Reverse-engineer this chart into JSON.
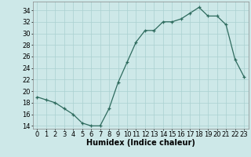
{
  "x": [
    0,
    1,
    2,
    3,
    4,
    5,
    6,
    7,
    8,
    9,
    10,
    11,
    12,
    13,
    14,
    15,
    16,
    17,
    18,
    19,
    20,
    21,
    22,
    23
  ],
  "y": [
    19,
    18.5,
    18,
    17,
    16,
    14.5,
    14,
    14,
    17,
    21.5,
    25,
    28.5,
    30.5,
    30.5,
    32,
    32,
    32.5,
    33.5,
    34.5,
    33,
    33,
    31.5,
    25.5,
    22.5
  ],
  "xlabel": "Humidex (Indice chaleur)",
  "ylim": [
    13.5,
    35.5
  ],
  "xlim": [
    -0.5,
    23.5
  ],
  "yticks": [
    14,
    16,
    18,
    20,
    22,
    24,
    26,
    28,
    30,
    32,
    34
  ],
  "xticks": [
    0,
    1,
    2,
    3,
    4,
    5,
    6,
    7,
    8,
    9,
    10,
    11,
    12,
    13,
    14,
    15,
    16,
    17,
    18,
    19,
    20,
    21,
    22,
    23
  ],
  "line_color": "#2e6b5e",
  "bg_color": "#cde8e8",
  "grid_color": "#aad0d0",
  "label_fontsize": 7.0,
  "tick_fontsize": 6.0
}
